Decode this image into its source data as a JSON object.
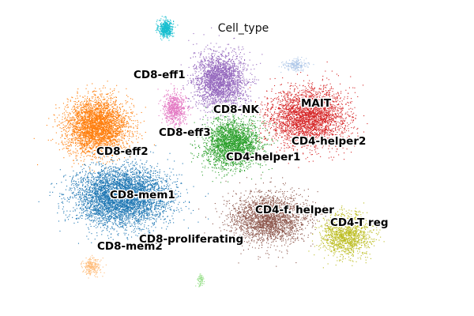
{
  "chart_data": {
    "type": "scatter",
    "title": "Cell_type",
    "xlabel": "",
    "ylabel": "",
    "grid": false,
    "legend": "on data",
    "series": [
      {
        "name": "CD8-eff1",
        "color": "#17becf",
        "center": [
          0.9,
          9.1
        ],
        "spread": [
          0.45,
          0.55
        ],
        "n": 500
      },
      {
        "name": "CD8-eff2",
        "color": "#ff7f0e",
        "center": [
          -3.8,
          2.4
        ],
        "spread": [
          1.9,
          1.7
        ],
        "n": 3600
      },
      {
        "name": "CD8-eff3",
        "color": "#e377c2",
        "center": [
          1.5,
          3.6
        ],
        "spread": [
          0.7,
          1.0
        ],
        "n": 650
      },
      {
        "name": "CD8-mem1",
        "color": "#1f77b4",
        "center": [
          -2.2,
          -2.4
        ],
        "spread": [
          2.9,
          1.8
        ],
        "n": 4800
      },
      {
        "name": "CD8-mem2",
        "color": "#ffbb78",
        "center": [
          -4.2,
          -7.2
        ],
        "spread": [
          0.55,
          0.5
        ],
        "n": 220
      },
      {
        "name": "CD8-NK",
        "color": "#9467bd",
        "center": [
          4.6,
          5.5
        ],
        "spread": [
          1.6,
          1.7
        ],
        "n": 2500
      },
      {
        "name": "CD8-proliferating",
        "color": "#98df8a",
        "center": [
          3.3,
          -8.1
        ],
        "spread": [
          0.2,
          0.35
        ],
        "n": 70
      },
      {
        "name": "CD4-helper1",
        "color": "#2ca02c",
        "center": [
          5.4,
          1.2
        ],
        "spread": [
          1.7,
          1.5
        ],
        "n": 2500
      },
      {
        "name": "CD4-helper2",
        "color": "#d62728",
        "center": [
          10.6,
          3.0
        ],
        "spread": [
          2.4,
          1.8
        ],
        "n": 3000
      },
      {
        "name": "MAIT",
        "color": "#aec7e8",
        "center": [
          9.8,
          6.6
        ],
        "spread": [
          0.7,
          0.35
        ],
        "n": 200
      },
      {
        "name": "CD4-f. helper",
        "color": "#8c564b",
        "center": [
          8.0,
          -3.9
        ],
        "spread": [
          2.3,
          1.5
        ],
        "n": 2500
      },
      {
        "name": "CD4-T reg",
        "color": "#bcbd22",
        "center": [
          13.2,
          -5.0
        ],
        "spread": [
          1.5,
          1.3
        ],
        "n": 1400
      }
    ]
  }
}
